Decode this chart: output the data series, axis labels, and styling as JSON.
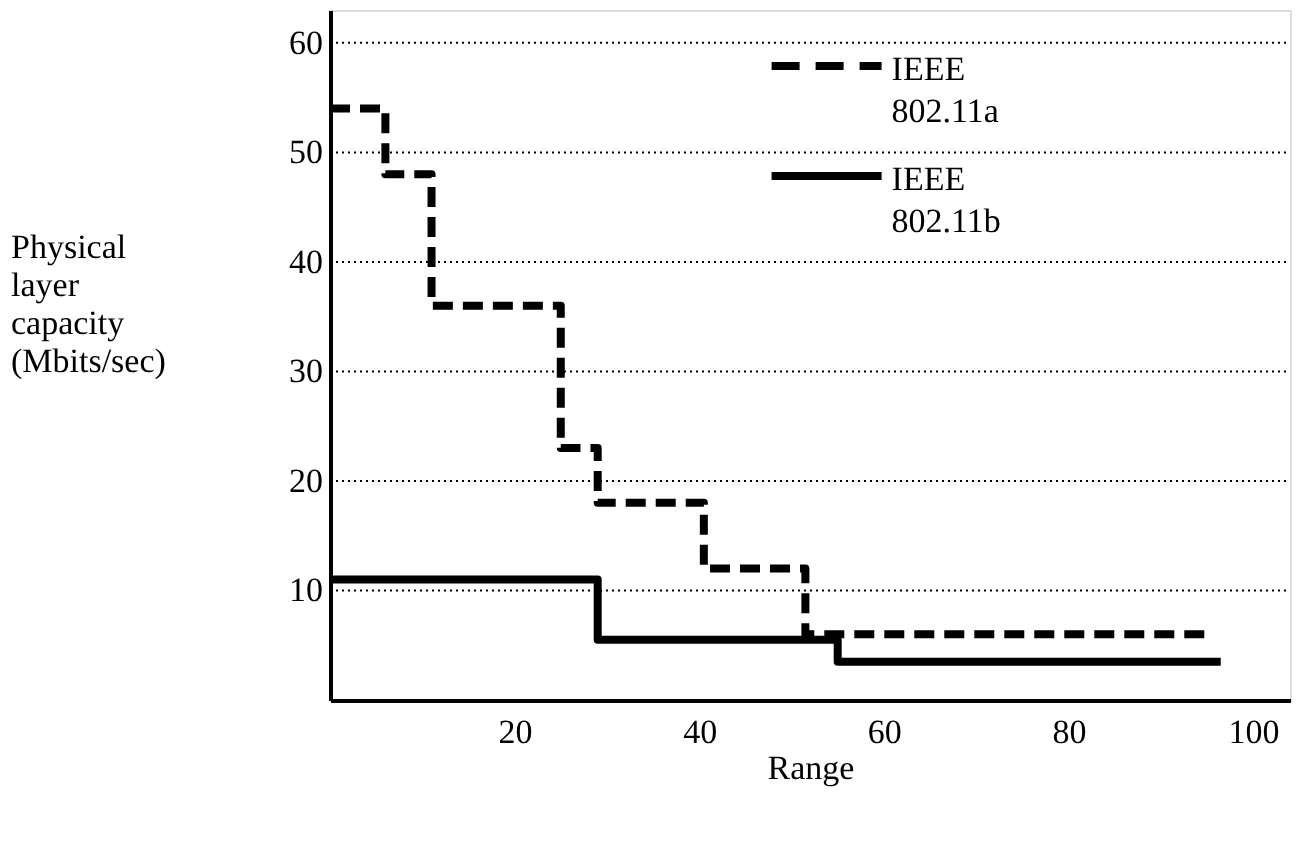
{
  "chart_data": {
    "type": "step",
    "xlabel": "Range",
    "ylabel": "Physical layer capacity (Mbits/sec)",
    "xlim": [
      0,
      104
    ],
    "ylim": [
      0,
      63
    ],
    "xticks": [
      20,
      40,
      60,
      80,
      100
    ],
    "yticks": [
      10,
      20,
      30,
      40,
      50,
      60
    ],
    "grid": "y",
    "legend": "top right",
    "marker": "none",
    "series": [
      {
        "name": "IEEE 802.11a",
        "color": "#000000",
        "line_style": "dashed",
        "x": [
          0,
          6,
          11,
          25,
          29,
          40.5,
          51.5,
          95.5
        ],
        "values": [
          54,
          48,
          36,
          23,
          18,
          12,
          6,
          6
        ]
      },
      {
        "name": "IEEE 802.11b",
        "color": "#000000",
        "line_style": "solid",
        "x": [
          0,
          29,
          55,
          96.5
        ],
        "values": [
          11,
          5.5,
          3.5,
          3.5
        ]
      }
    ]
  }
}
